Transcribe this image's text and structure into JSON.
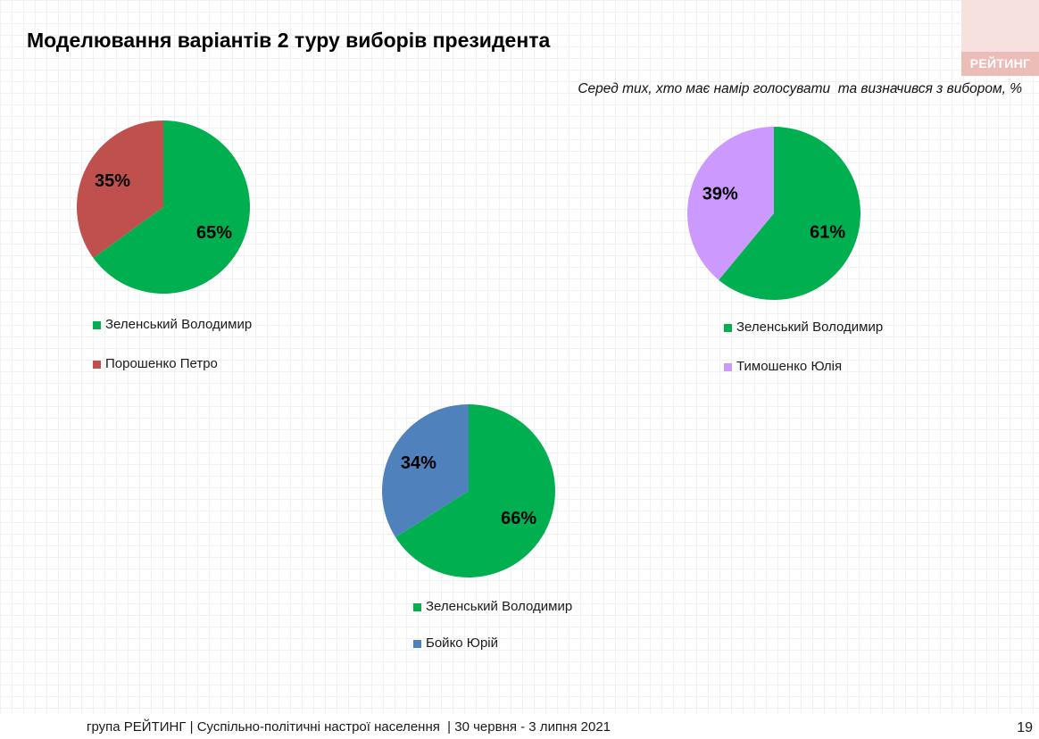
{
  "header": {
    "title": "Моделювання варіантів 2 туру виборів президента",
    "subtitle": "Серед тих, хто має намір голосувати  та визначився з вибором, %"
  },
  "logo": {
    "text": "РЕЙТИНГ"
  },
  "chart_data": [
    {
      "type": "pie",
      "categories": [
        "Зеленський Володимир",
        "Порошенко Петро"
      ],
      "values": [
        65,
        35
      ],
      "data_labels": [
        "65%",
        "35%"
      ],
      "colors": [
        "#00b050",
        "#c0504d"
      ],
      "legend": "bottom-left"
    },
    {
      "type": "pie",
      "categories": [
        "Зеленський Володимир",
        "Тимошенко Юлія"
      ],
      "values": [
        61,
        39
      ],
      "data_labels": [
        "61%",
        "39%"
      ],
      "colors": [
        "#00b050",
        "#cc99ff"
      ],
      "legend": "bottom-left"
    },
    {
      "type": "pie",
      "categories": [
        "Зеленський Володимир",
        "Бойко Юрій"
      ],
      "values": [
        66,
        34
      ],
      "data_labels": [
        "66%",
        "34%"
      ],
      "colors": [
        "#00b050",
        "#4f81bd"
      ],
      "legend": "bottom-left"
    }
  ],
  "footer": {
    "source": "група РЕЙТИНГ | Суспільно-політичні настрої населення  | 30 червня - 3 липня 2021",
    "page_number": "19"
  }
}
